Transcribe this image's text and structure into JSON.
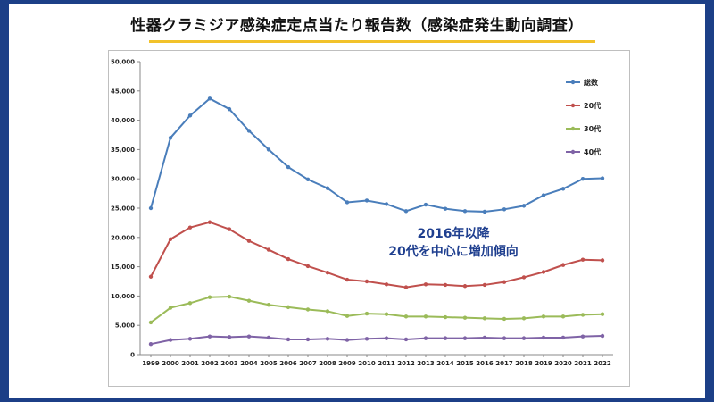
{
  "title": "性器クラミジア感染症定点当たり報告数（感染症発生動向調査）",
  "annotation": {
    "line1": "2016年以降",
    "line2": "20代を中心に増加傾向"
  },
  "colors": {
    "frame": "#1c3f87",
    "underline": "#f2c22a",
    "annotation": "#1f3f8f"
  },
  "chart_data": {
    "type": "line",
    "title": "",
    "xlabel": "",
    "ylabel": "",
    "ylim": [
      0,
      50000
    ],
    "yticks": [
      0,
      5000,
      10000,
      15000,
      20000,
      25000,
      30000,
      35000,
      40000,
      45000,
      50000
    ],
    "ytick_labels": [
      "0",
      "5,000",
      "10,000",
      "15,000",
      "20,000",
      "25,000",
      "30,000",
      "35,000",
      "40,000",
      "45,000",
      "50,000"
    ],
    "categories": [
      "1999",
      "2000",
      "2001",
      "2002",
      "2003",
      "2004",
      "2005",
      "2006",
      "2007",
      "2008",
      "2009",
      "2010",
      "2011",
      "2012",
      "2013",
      "2014",
      "2015",
      "2016",
      "2017",
      "2018",
      "2019",
      "2020",
      "2021",
      "2022"
    ],
    "legend_position": "top-right",
    "series": [
      {
        "name": "総数",
        "color": "#4a7ebb",
        "values": [
          25000,
          37000,
          40800,
          43700,
          41900,
          38200,
          35000,
          32000,
          29900,
          28400,
          26000,
          26300,
          25700,
          24500,
          25600,
          24900,
          24500,
          24400,
          24800,
          25400,
          27200,
          28300,
          30000,
          30100
        ]
      },
      {
        "name": "20代",
        "color": "#c0504d",
        "values": [
          13300,
          19700,
          21700,
          22600,
          21400,
          19400,
          17900,
          16300,
          15100,
          14000,
          12800,
          12500,
          12000,
          11500,
          12000,
          11900,
          11700,
          11900,
          12400,
          13200,
          14100,
          15300,
          16200,
          16100
        ]
      },
      {
        "name": "30代",
        "color": "#9bbb59",
        "values": [
          5500,
          8000,
          8800,
          9800,
          9900,
          9200,
          8500,
          8100,
          7700,
          7400,
          6600,
          7000,
          6900,
          6500,
          6500,
          6400,
          6300,
          6200,
          6100,
          6200,
          6500,
          6500,
          6800,
          6900
        ]
      },
      {
        "name": "40代",
        "color": "#7f63a6",
        "values": [
          1800,
          2500,
          2700,
          3100,
          3000,
          3100,
          2900,
          2600,
          2600,
          2700,
          2500,
          2700,
          2800,
          2600,
          2800,
          2800,
          2800,
          2900,
          2800,
          2800,
          2900,
          2900,
          3100,
          3200
        ]
      }
    ]
  }
}
